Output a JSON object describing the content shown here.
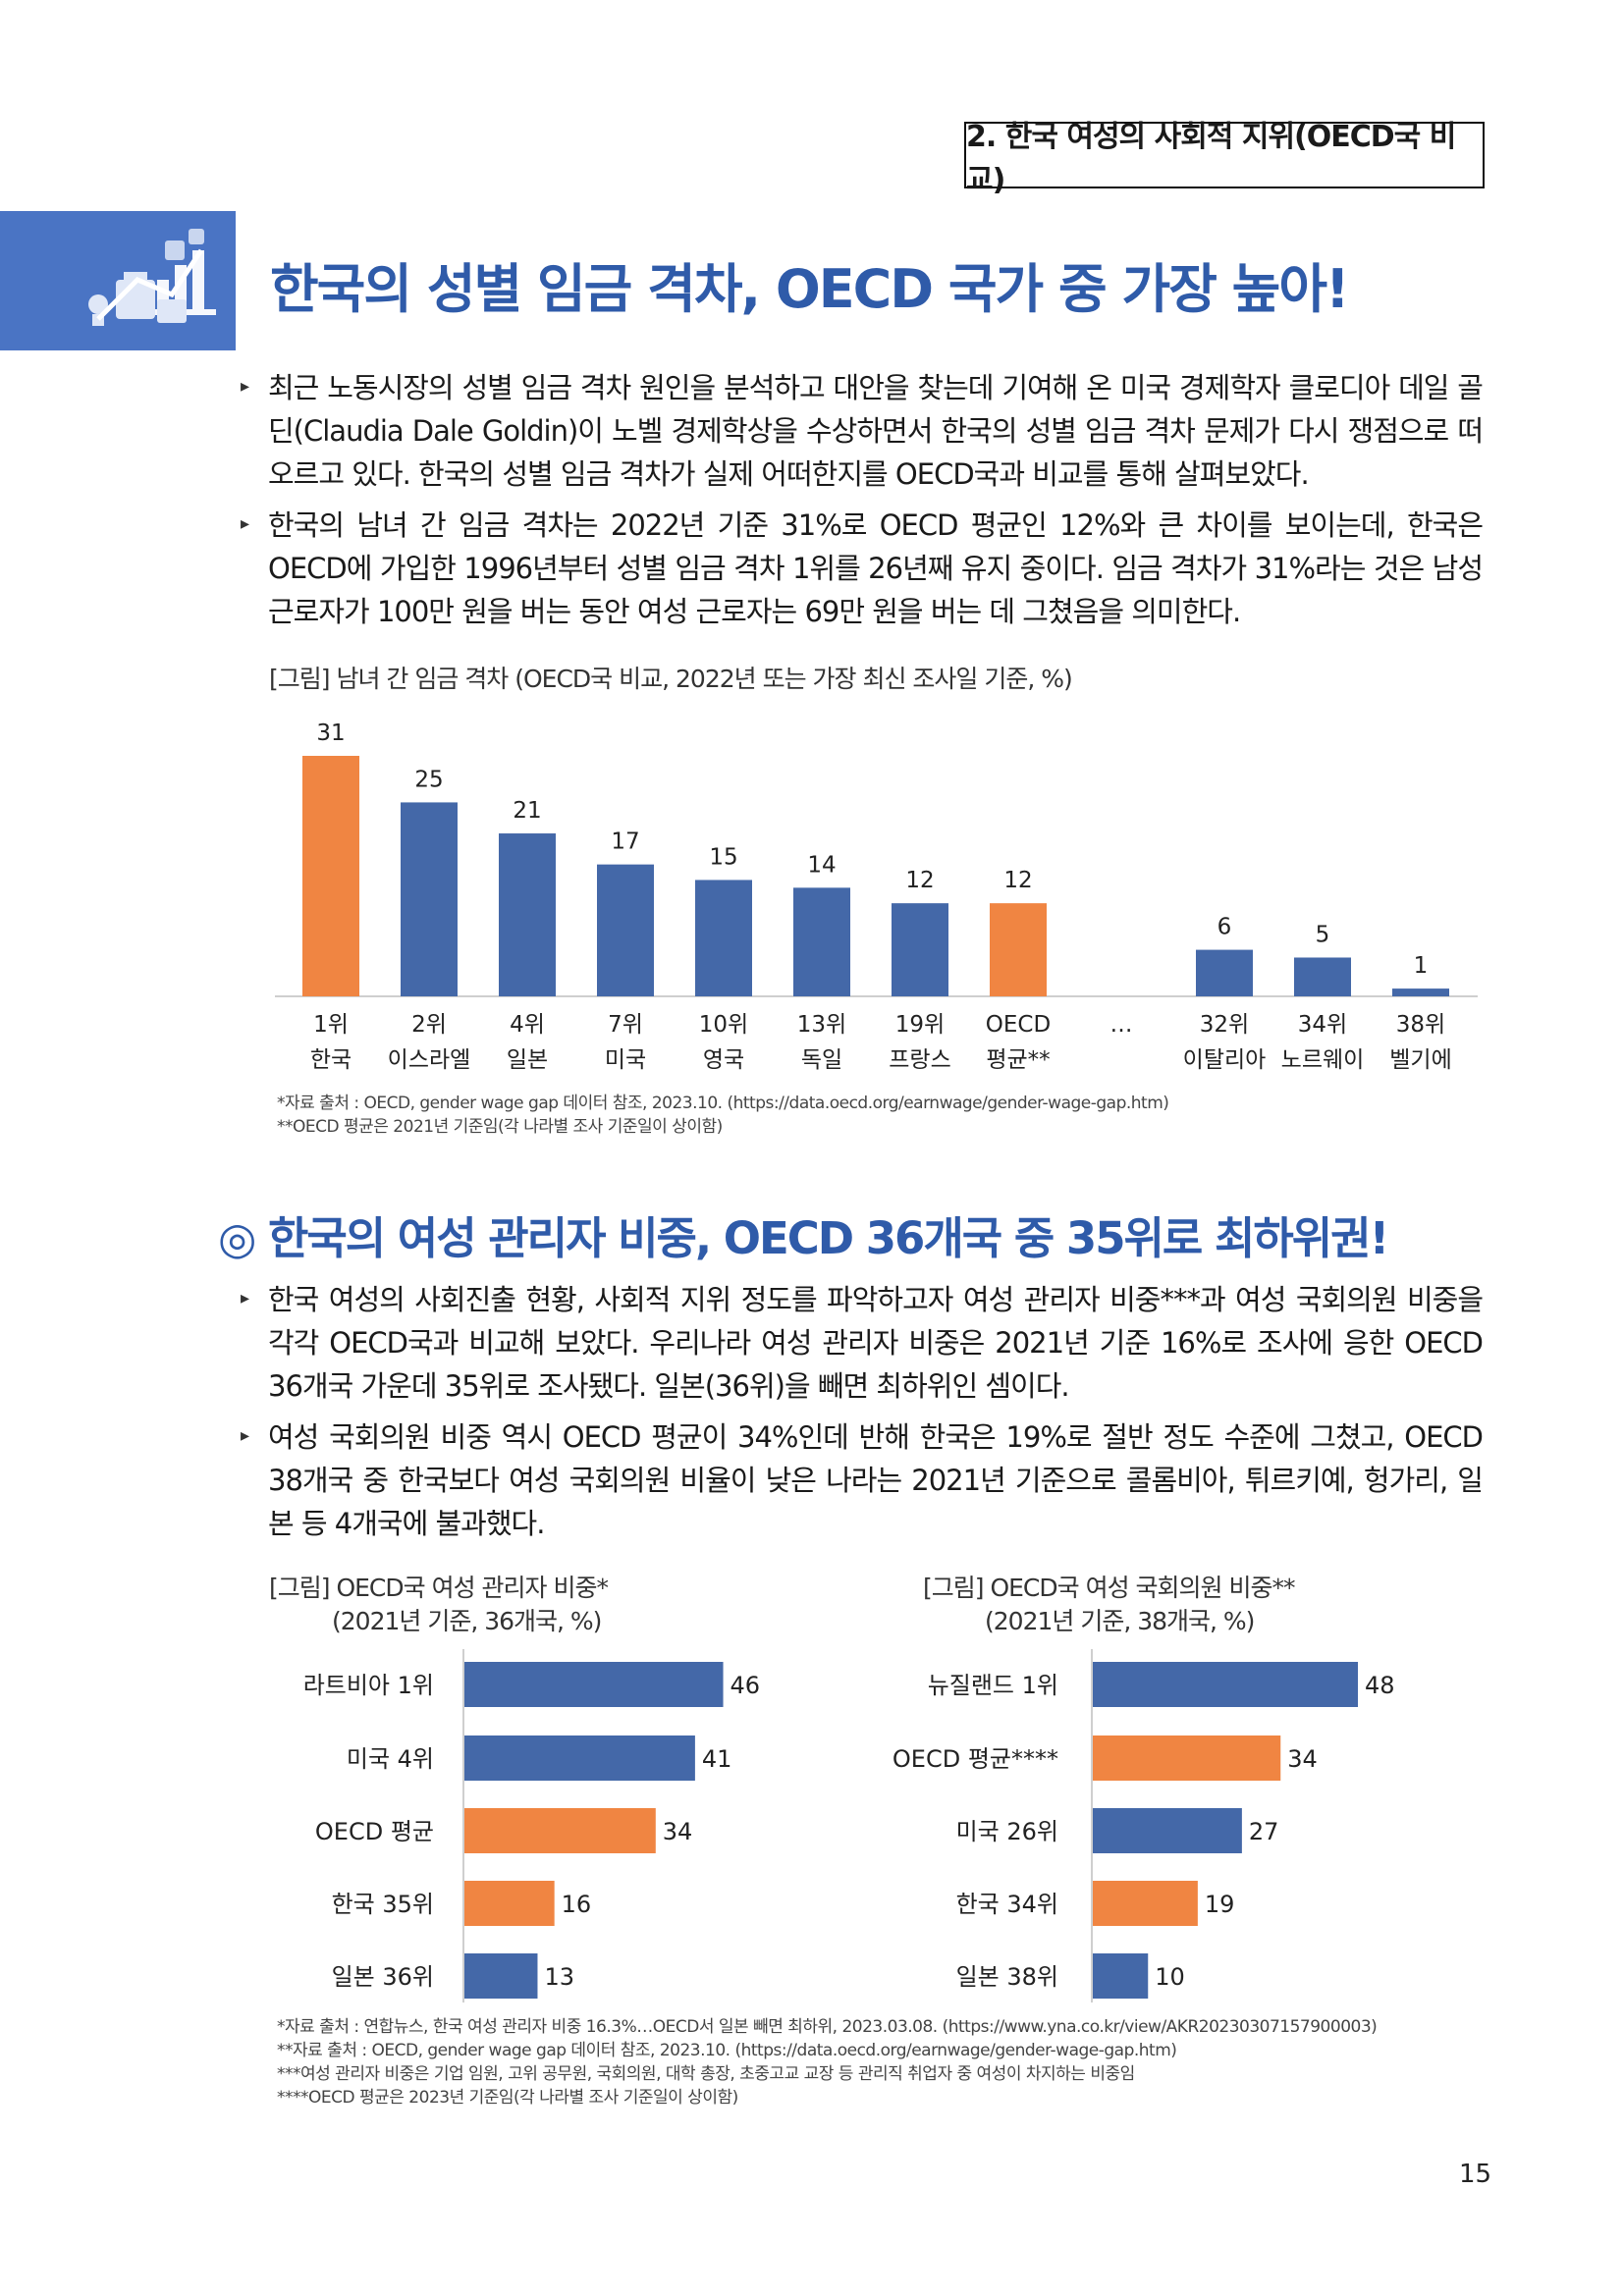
{
  "header": {
    "section_label": "2. 한국 여성의 사회적 지위(OECD국 비교)"
  },
  "section1": {
    "title": "한국의 성별 임금 격차, OECD 국가 중 가장 높아!",
    "paragraphs": [
      "최근 노동시장의 성별 임금 격차 원인을 분석하고 대안을 찾는데 기여해 온 미국 경제학자 클로디아 데일 골딘(Claudia Dale Goldin)이 노벨 경제학상을 수상하면서 한국의 성별 임금 격차 문제가 다시 쟁점으로 떠오르고 있다. 한국의 성별 임금 격차가 실제 어떠한지를 OECD국과 비교를 통해 살펴보았다.",
      "한국의 남녀 간 임금 격차는 2022년 기준 31%로 OECD 평균인 12%와 큰 차이를 보이는데, 한국은 OECD에 가입한 1996년부터 성별 임금 격차 1위를 26년째 유지 중이다. 임금 격차가 31%라는 것은 남성 근로자가 100만 원을 버는 동안 여성 근로자는 69만 원을 버는 데 그쳤음을 의미한다."
    ],
    "figure_caption": "[그림] 남녀 간 임금 격차 (OECD국 비교, 2022년 또는 가장 최신 조사일 기준, %)",
    "ellipsis": "…",
    "sources": [
      "*자료 출처 : OECD, gender wage gap 데이터 참조, 2023.10. (https://data.oecd.org/earnwage/gender-wage-gap.htm)",
      "**OECD 평균은 2021년 기준임(각 나라별 조사 기준일이 상이함)"
    ]
  },
  "section2": {
    "title_mark": "◎",
    "title": "한국의 여성 관리자 비중, OECD 36개국 중 35위로 최하위권!",
    "paragraphs": [
      "한국 여성의 사회진출 현황, 사회적 지위 정도를 파악하고자 여성 관리자 비중***과 여성 국회의원 비중을 각각 OECD국과 비교해 보았다. 우리나라 여성 관리자 비중은 2021년 기준 16%로 조사에 응한 OECD 36개국 가운데 35위로 조사됐다. 일본(36위)을 빼면 최하위인 셈이다.",
      "여성 국회의원 비중 역시 OECD 평균이 34%인데 반해 한국은 19%로 절반 정도 수준에 그쳤고, OECD 38개국 중 한국보다 여성 국회의원 비율이 낮은 나라는 2021년 기준으로 콜롬비아, 튀르키예, 헝가리, 일본 등 4개국에 불과했다."
    ],
    "fig_left_caption": [
      "[그림] OECD국 여성 관리자 비중*",
      "(2021년 기준, 36개국, %)"
    ],
    "fig_right_caption": [
      "[그림] OECD국 여성 국회의원 비중**",
      "(2021년 기준, 38개국, %)"
    ],
    "sources": [
      "*자료 출처 : 연합뉴스, 한국 여성 관리자 비중 16.3%…OECD서 일본 빼면 최하위, 2023.03.08. (https://www.yna.co.kr/view/AKR20230307157900003)",
      "**자료 출처 : OECD, gender wage gap 데이터 참조, 2023.10. (https://data.oecd.org/earnwage/gender-wage-gap.htm)",
      "***여성 관리자 비중은 기업 임원, 고위 공무원, 국회의원, 대학 총장, 초중고교 교장 등 관리직 취업자 중 여성이 차지하는 비중임",
      "****OECD 평균은 2023년 기준임(각 나라별 조사 기준일이 상이함)"
    ]
  },
  "page_number": "15",
  "colors": {
    "accent": "#2f5ba9",
    "bar_blue": "#4468a8",
    "bar_orange": "#f08542"
  },
  "chart_data": [
    {
      "type": "bar",
      "title": "[그림] 남녀 간 임금 격차 (OECD국 비교, 2022년 또는 가장 최신 조사일 기준, %)",
      "categories": [
        "1위 한국",
        "2위 이스라엘",
        "4위 일본",
        "7위 미국",
        "10위 영국",
        "13위 독일",
        "19위 프랑스",
        "OECD 평균**",
        "32위 이탈리아",
        "34위 노르웨이",
        "38위 벨기에"
      ],
      "ranks": [
        "1위",
        "2위",
        "4위",
        "7위",
        "10위",
        "13위",
        "19위",
        "OECD",
        "32위",
        "34위",
        "38위"
      ],
      "countries": [
        "한국",
        "이스라엘",
        "일본",
        "미국",
        "영국",
        "독일",
        "프랑스",
        "평균**",
        "이탈리아",
        "노르웨이",
        "벨기에"
      ],
      "values": [
        31,
        25,
        21,
        17,
        15,
        14,
        12,
        12,
        6,
        5,
        1
      ],
      "highlight": [
        true,
        false,
        false,
        false,
        false,
        false,
        false,
        true,
        false,
        false,
        false
      ],
      "ylim": [
        0,
        31
      ]
    },
    {
      "type": "bar",
      "orientation": "horizontal",
      "title": "[그림] OECD국 여성 관리자 비중*",
      "categories": [
        "라트비아 1위",
        "미국 4위",
        "OECD 평균",
        "한국 35위",
        "일본 36위"
      ],
      "values": [
        46,
        41,
        34,
        16,
        13
      ],
      "highlight": [
        false,
        false,
        true,
        true,
        false
      ],
      "xlim": [
        0,
        48
      ]
    },
    {
      "type": "bar",
      "orientation": "horizontal",
      "title": "[그림] OECD국 여성 국회의원 비중**",
      "categories": [
        "뉴질랜드 1위",
        "OECD 평균****",
        "미국 26위",
        "한국 34위",
        "일본 38위"
      ],
      "values": [
        48,
        34,
        27,
        19,
        10
      ],
      "highlight": [
        false,
        true,
        false,
        true,
        false
      ],
      "xlim": [
        0,
        48
      ]
    }
  ]
}
